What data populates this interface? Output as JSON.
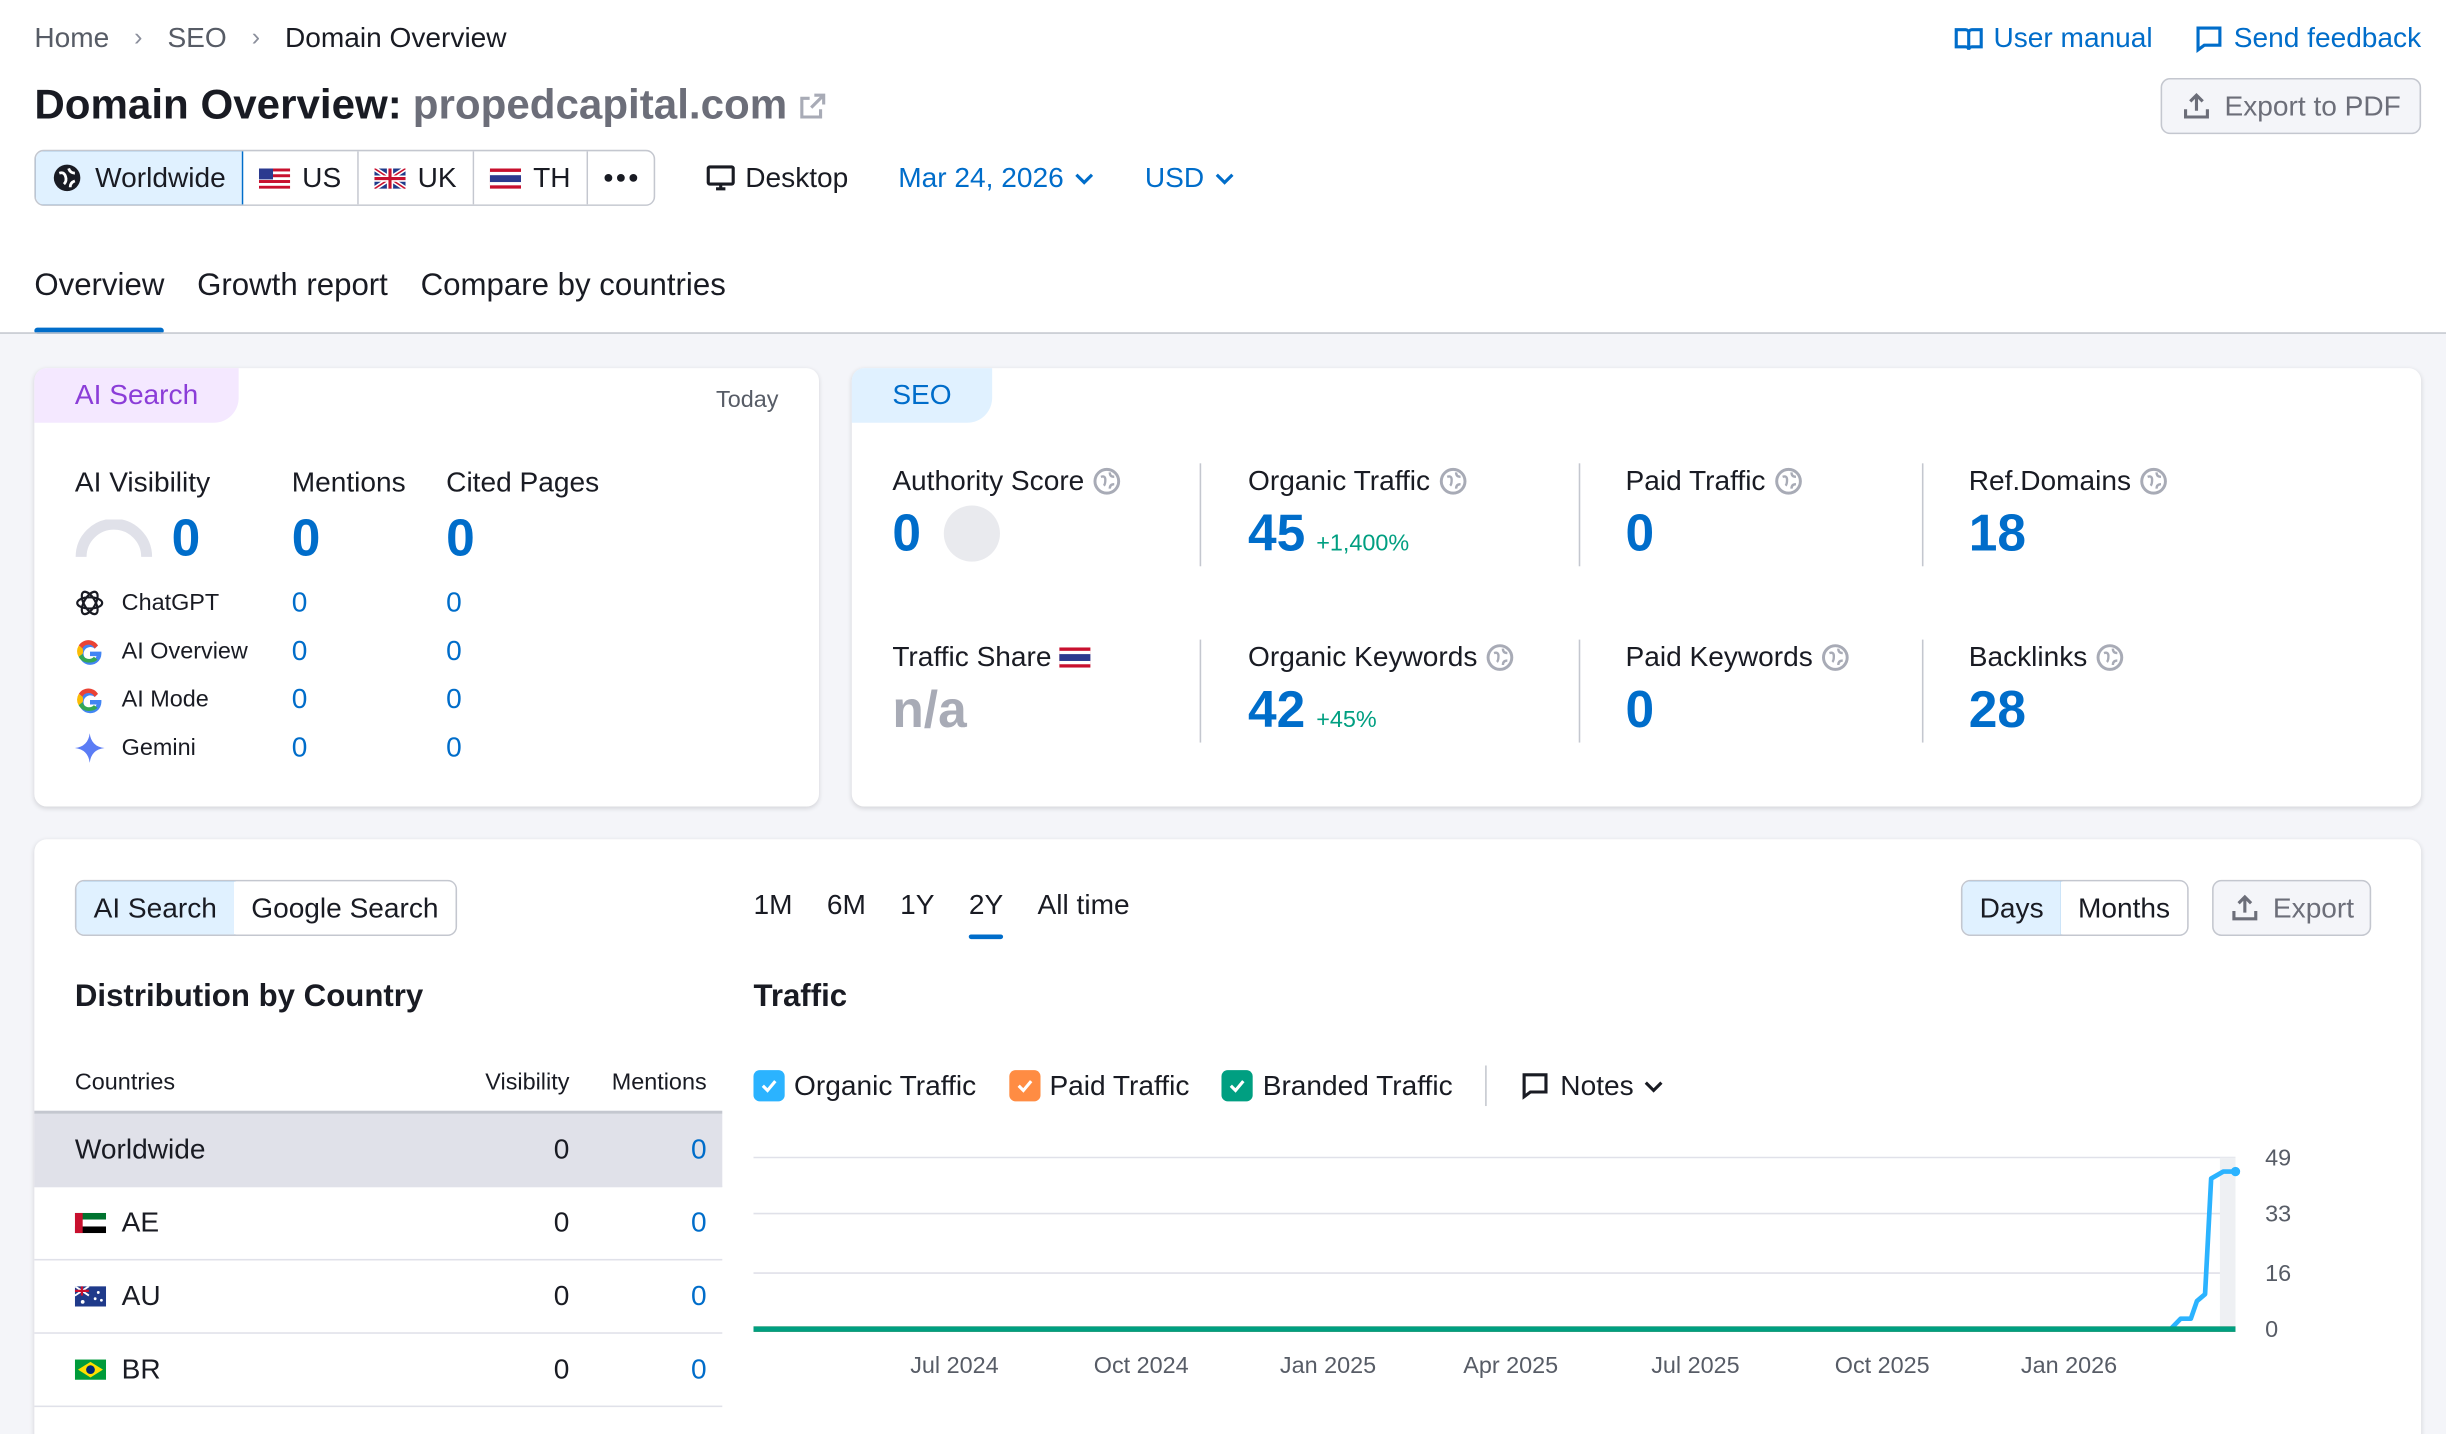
{
  "breadcrumb": {
    "items": [
      "Home",
      "SEO",
      "Domain Overview"
    ]
  },
  "header": {
    "title_prefix": "Domain Overview:",
    "domain": "propedcapital.com",
    "user_manual": "User manual",
    "send_feedback": "Send feedback",
    "export_pdf": "Export to PDF"
  },
  "databases": [
    {
      "label": "Worldwide",
      "active": true
    },
    {
      "label": "US"
    },
    {
      "label": "UK"
    },
    {
      "label": "TH"
    }
  ],
  "device": "Desktop",
  "date": "Mar 24, 2026",
  "currency": "USD",
  "tabs": [
    "Overview",
    "Growth report",
    "Compare by countries"
  ],
  "ai_card": {
    "tag": "AI Search",
    "period": "Today",
    "headers": {
      "visibility": "AI Visibility",
      "mentions": "Mentions",
      "cited": "Cited Pages"
    },
    "totals": {
      "visibility": "0",
      "mentions": "0",
      "cited": "0"
    },
    "visibility_gauge_fraction": 0,
    "rows": [
      {
        "name": "ChatGPT",
        "mentions": "0",
        "cited": "0"
      },
      {
        "name": "AI Overview",
        "mentions": "0",
        "cited": "0"
      },
      {
        "name": "AI Mode",
        "mentions": "0",
        "cited": "0"
      },
      {
        "name": "Gemini",
        "mentions": "0",
        "cited": "0"
      }
    ]
  },
  "seo_card": {
    "tag": "SEO",
    "authority_score": {
      "label": "Authority Score",
      "value": "0"
    },
    "organic_traffic": {
      "label": "Organic Traffic",
      "value": "45",
      "change": "+1,400%"
    },
    "paid_traffic": {
      "label": "Paid Traffic",
      "value": "0"
    },
    "ref_domains": {
      "label": "Ref.Domains",
      "value": "18"
    },
    "traffic_share": {
      "label": "Traffic Share",
      "value": "n/a"
    },
    "organic_keywords": {
      "label": "Organic Keywords",
      "value": "42",
      "change": "+45%"
    },
    "paid_keywords": {
      "label": "Paid Keywords",
      "value": "0"
    },
    "backlinks": {
      "label": "Backlinks",
      "value": "28"
    }
  },
  "search_toggle": {
    "options": [
      "AI Search",
      "Google Search"
    ],
    "active": "AI Search"
  },
  "periods": {
    "options": [
      "1M",
      "6M",
      "1Y",
      "2Y",
      "All time"
    ],
    "active": "2Y"
  },
  "granularity": {
    "options": [
      "Days",
      "Months"
    ],
    "active": "Days"
  },
  "export_label": "Export",
  "distribution": {
    "title": "Distribution by Country",
    "headers": [
      "Countries",
      "Visibility",
      "Mentions"
    ],
    "rows": [
      {
        "country": "Worldwide",
        "visibility": "0",
        "mentions": "0",
        "selected": true
      },
      {
        "country": "AE",
        "visibility": "0",
        "mentions": "0"
      },
      {
        "country": "AU",
        "visibility": "0",
        "mentions": "0"
      },
      {
        "country": "BR",
        "visibility": "0",
        "mentions": "0"
      }
    ]
  },
  "traffic": {
    "title": "Traffic",
    "legend": [
      "Organic Traffic",
      "Paid Traffic",
      "Branded Traffic"
    ],
    "notes_label": "Notes"
  },
  "colors": {
    "accent": "#006dca",
    "organic": "#2bb3ff",
    "paid": "#ff8c43",
    "branded": "#009f81",
    "ai_tag": "#8b3dd8"
  },
  "chart_data": {
    "type": "line",
    "x_tick_labels": [
      "Jul 2024",
      "Oct 2024",
      "Jan 2025",
      "Apr 2025",
      "Jul 2025",
      "Oct 2025",
      "Jan 2026"
    ],
    "y_ticks": [
      0,
      16,
      33,
      49
    ],
    "ylim": [
      0,
      49
    ],
    "xlim": [
      "2024-03-24",
      "2026-03-24"
    ],
    "series": [
      {
        "name": "Organic Traffic",
        "points": [
          [
            "2024-03-24",
            0
          ],
          [
            "2026-02-20",
            0
          ],
          [
            "2026-02-25",
            3
          ],
          [
            "2026-03-02",
            3
          ],
          [
            "2026-03-05",
            8
          ],
          [
            "2026-03-09",
            10
          ],
          [
            "2026-03-12",
            43
          ],
          [
            "2026-03-18",
            45
          ],
          [
            "2026-03-24",
            45
          ]
        ]
      },
      {
        "name": "Paid Traffic",
        "points": [
          [
            "2024-03-24",
            0
          ],
          [
            "2026-03-24",
            0
          ]
        ]
      },
      {
        "name": "Branded Traffic",
        "points": [
          [
            "2024-03-24",
            0
          ],
          [
            "2026-03-24",
            0
          ]
        ]
      }
    ],
    "grid": true
  }
}
